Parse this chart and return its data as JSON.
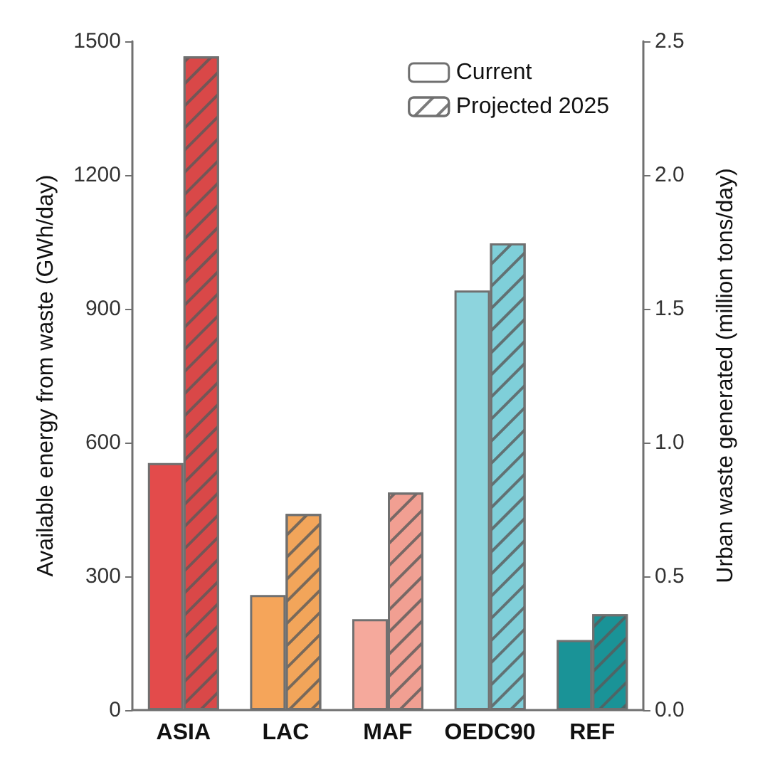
{
  "chart_data": {
    "type": "bar",
    "categories": [
      "ASIA",
      "LAC",
      "MAF",
      "OEDC90",
      "REF"
    ],
    "series": [
      {
        "name": "Current",
        "colors": [
          "#e34b4b",
          "#f5a55a",
          "#f5a99c",
          "#8dd4dd",
          "#1a9397"
        ],
        "values": [
          554,
          258,
          204,
          941,
          157
        ]
      },
      {
        "name": "Projected 2025",
        "colors": [
          "#d94848",
          "#f2a55a",
          "#f19f92",
          "#7fcfd9",
          "#1a9397"
        ],
        "values": [
          1466,
          440,
          488,
          1047,
          215
        ]
      }
    ],
    "ylabel": "Available energy from waste (GWh/day)",
    "y2label": "Urban waste generated (million tons/day)",
    "ylim": [
      0,
      1500
    ],
    "yticks": [
      0,
      300,
      600,
      900,
      1200,
      1500
    ],
    "y2lim": [
      0,
      2.5
    ],
    "y2ticks": [
      {
        "value": 0,
        "label": "0.0"
      },
      {
        "value": 0.5,
        "label": "0.5"
      },
      {
        "value": 1,
        "label": "1.0"
      },
      {
        "value": 1.5,
        "label": "1.5"
      },
      {
        "value": 2,
        "label": "2.0"
      },
      {
        "value": 2.5,
        "label": "2.5"
      }
    ],
    "legend": "top right",
    "grid": false
  }
}
